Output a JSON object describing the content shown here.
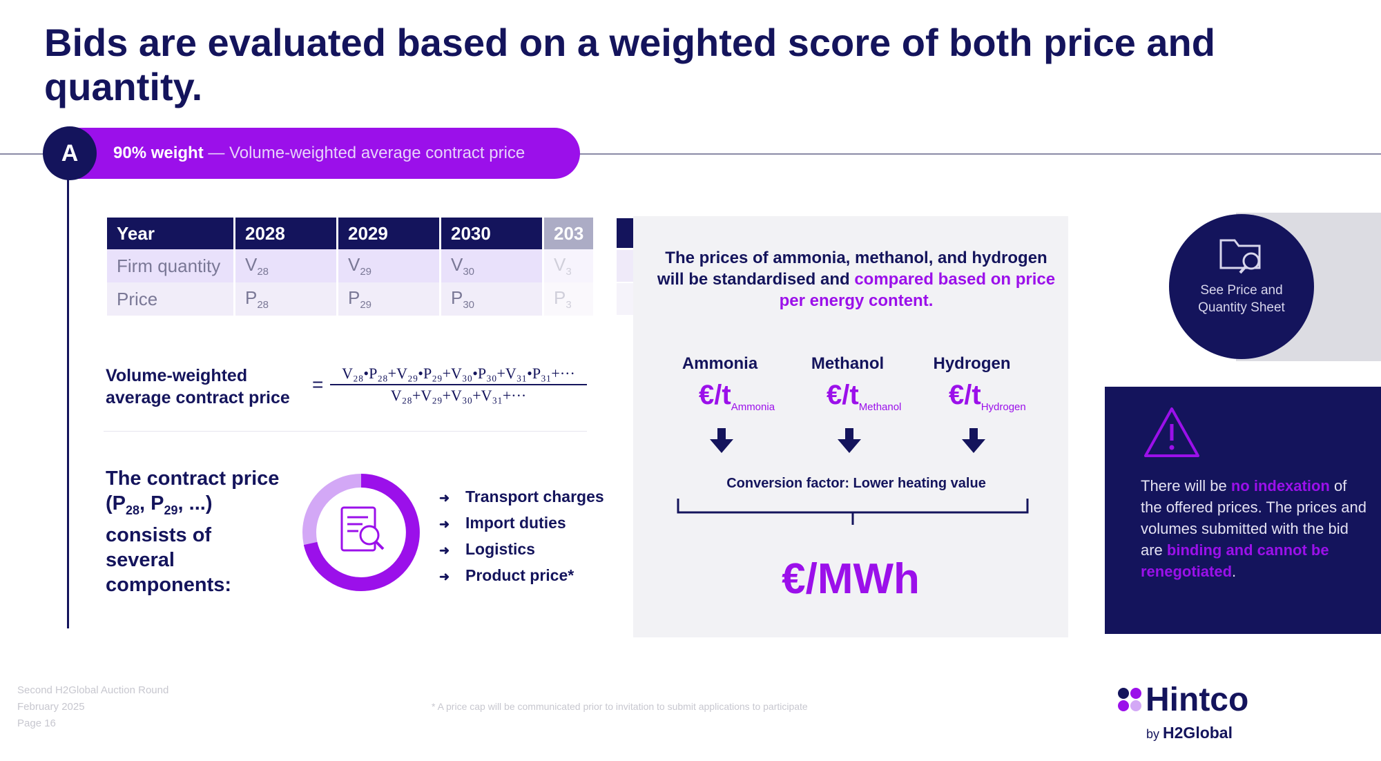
{
  "title": "Bids are evaluated based on a weighted score of both price and quantity.",
  "section": {
    "letter": "A",
    "weight": "90% weight",
    "desc": "— Volume-weighted average contract price"
  },
  "table": {
    "headers": [
      "Year",
      "2028",
      "2029",
      "2030",
      "203"
    ],
    "rows": [
      {
        "label": "Firm quantity",
        "cells": [
          [
            "V",
            "28"
          ],
          [
            "V",
            "29"
          ],
          [
            "V",
            "30"
          ],
          [
            "V",
            "3"
          ]
        ]
      },
      {
        "label": "Price",
        "cells": [
          [
            "P",
            "28"
          ],
          [
            "P",
            "29"
          ],
          [
            "P",
            "30"
          ],
          [
            "P",
            "3"
          ]
        ]
      }
    ]
  },
  "formula": {
    "label_line1": "Volume-weighted",
    "label_line2": "average contract price",
    "equals": "=",
    "numerator": "V₂₈•P₂₈+V₂₉•P₂₉+V₃₀•P₃₀+V₃₁•P₃₁+···",
    "denominator": "V₂₈+V₂₉+V₃₀+V₃₁+···"
  },
  "contract": {
    "text_a": "The contract price (P",
    "sub1": "28",
    "text_b": ", P",
    "sub2": "29",
    "text_c": ", ...) consists of several components:"
  },
  "components": [
    "Transport charges",
    "Import duties",
    "Logistics",
    "Product price*"
  ],
  "panel": {
    "intro_plain": "The prices of ammonia, methanol, and hydrogen will be standardised and ",
    "intro_highlight": "compared based on price per energy content.",
    "chemicals": [
      {
        "name": "Ammonia",
        "unit": "€/t",
        "sub": "Ammonia"
      },
      {
        "name": "Methanol",
        "unit": "€/t",
        "sub": "Methanol"
      },
      {
        "name": "Hydrogen",
        "unit": "€/t",
        "sub": "Hydrogen"
      }
    ],
    "conversion": "Conversion factor: Lower heating value",
    "result_unit": "€/MWh"
  },
  "see_sheet": "See Price and Quantity Sheet",
  "warning": {
    "p1": "There will be ",
    "h1": "no indexation",
    "p2": " of the offered prices. The prices and volumes submitted with the bid are ",
    "h2": "binding and cannot be renegotiated",
    "p3": "."
  },
  "footer": {
    "line1": "Second H2Global Auction Round",
    "line2": "February 2025",
    "line3": "Page 16",
    "note": "* A price cap will be communicated prior to invitation to submit applications to participate",
    "brand": "Hintco",
    "by": "by",
    "parent": "H2Global"
  },
  "colors": {
    "navy": "#14145c",
    "purple": "#9b10ea",
    "panel_bg": "#f2f2f5"
  },
  "icons": [
    "document-search-icon",
    "folder-search-icon",
    "warning-triangle-icon",
    "arrow-down-icon",
    "bullet-arrow-icon"
  ]
}
